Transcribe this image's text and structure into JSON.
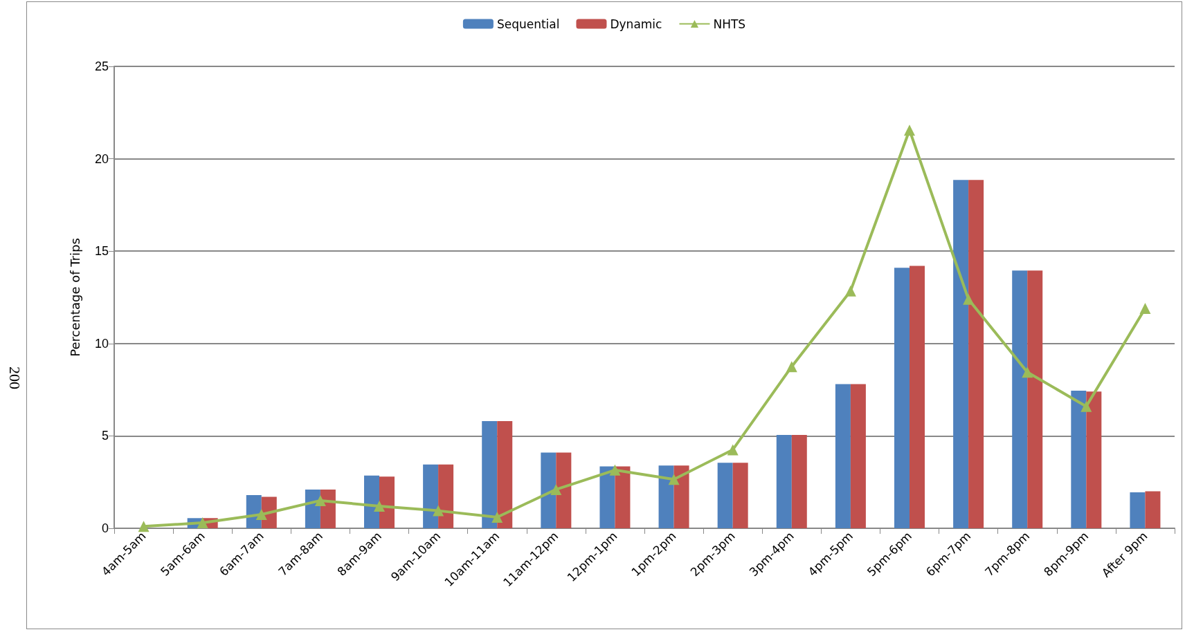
{
  "chart_data": {
    "type": "bar",
    "ylabel": "Percentage of Trips",
    "categories": [
      "4am-5am",
      "5am-6am",
      "6am-7am",
      "7am-8am",
      "8am-9am",
      "9am-10am",
      "10am-11am",
      "11am-12pm",
      "12pm-1pm",
      "1pm-2pm",
      "2pm-3pm",
      "3pm-4pm",
      "4pm-5pm",
      "5pm-6pm",
      "6pm-7pm",
      "7pm-8pm",
      "8pm-9pm",
      "After 9pm"
    ],
    "series": [
      {
        "name": "Sequential",
        "color": "#4f81bd",
        "values": [
          0,
          0.55,
          1.8,
          2.1,
          2.85,
          3.45,
          5.8,
          4.1,
          3.35,
          3.4,
          3.55,
          5.05,
          7.8,
          14.1,
          18.85,
          13.95,
          7.45,
          1.95
        ]
      },
      {
        "name": "Dynamic",
        "color": "#c0504d",
        "values": [
          0,
          0.55,
          1.7,
          2.1,
          2.8,
          3.45,
          5.8,
          4.1,
          3.35,
          3.4,
          3.55,
          5.05,
          7.8,
          14.2,
          18.85,
          13.95,
          7.4,
          2.0
        ]
      },
      {
        "name": "NHTS",
        "type": "line",
        "color": "#9bbb59",
        "marker": "triangle",
        "values": [
          0.1,
          0.3,
          0.75,
          1.5,
          1.2,
          0.95,
          0.6,
          2.1,
          3.15,
          2.65,
          4.25,
          8.75,
          12.85,
          21.55,
          12.4,
          8.45,
          6.6,
          11.9
        ]
      }
    ],
    "ylim": [
      0,
      25
    ],
    "yticks": [
      0,
      5,
      10,
      15,
      20,
      25
    ],
    "grid": "y",
    "legend": "top",
    "annotations": [
      "200"
    ]
  }
}
